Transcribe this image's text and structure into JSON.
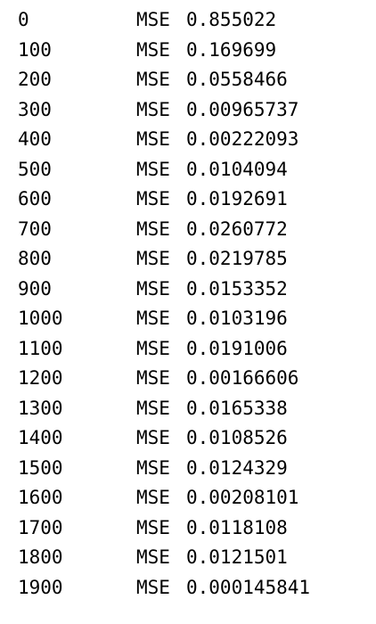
{
  "log": {
    "rows": [
      {
        "step": "0",
        "metric": "MSE",
        "value": "0.855022"
      },
      {
        "step": "100",
        "metric": "MSE",
        "value": "0.169699"
      },
      {
        "step": "200",
        "metric": "MSE",
        "value": "0.0558466"
      },
      {
        "step": "300",
        "metric": "MSE",
        "value": "0.00965737"
      },
      {
        "step": "400",
        "metric": "MSE",
        "value": "0.00222093"
      },
      {
        "step": "500",
        "metric": "MSE",
        "value": "0.0104094"
      },
      {
        "step": "600",
        "metric": "MSE",
        "value": "0.0192691"
      },
      {
        "step": "700",
        "metric": "MSE",
        "value": "0.0260772"
      },
      {
        "step": "800",
        "metric": "MSE",
        "value": "0.0219785"
      },
      {
        "step": "900",
        "metric": "MSE",
        "value": "0.0153352"
      },
      {
        "step": "1000",
        "metric": "MSE",
        "value": "0.0103196"
      },
      {
        "step": "1100",
        "metric": "MSE",
        "value": "0.0191006"
      },
      {
        "step": "1200",
        "metric": "MSE",
        "value": "0.00166606"
      },
      {
        "step": "1300",
        "metric": "MSE",
        "value": "0.0165338"
      },
      {
        "step": "1400",
        "metric": "MSE",
        "value": "0.0108526"
      },
      {
        "step": "1500",
        "metric": "MSE",
        "value": "0.0124329"
      },
      {
        "step": "1600",
        "metric": "MSE",
        "value": "0.00208101"
      },
      {
        "step": "1700",
        "metric": "MSE",
        "value": "0.0118108"
      },
      {
        "step": "1800",
        "metric": "MSE",
        "value": "0.0121501"
      },
      {
        "step": "1900",
        "metric": "MSE",
        "value": "0.000145841"
      }
    ]
  }
}
